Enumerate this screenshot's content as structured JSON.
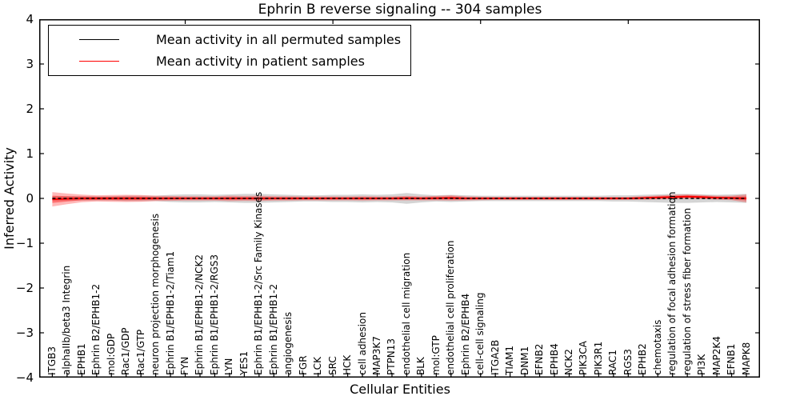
{
  "chart_data": {
    "type": "line",
    "title": "Ephrin B reverse signaling -- 304 samples",
    "xlabel": "Cellular Entities",
    "ylabel": "Inferred Activity",
    "ylim": [
      -4,
      4
    ],
    "yticks": [
      4,
      3,
      2,
      1,
      0,
      -1,
      -2,
      -3,
      -4
    ],
    "grid": false,
    "legend_position": "upper left",
    "xtick_rotation": 90,
    "top_tick_indices": [
      9,
      19,
      29,
      39
    ],
    "categories": [
      "ITGB3",
      "alphaIIb/beta3 Integrin",
      "EPHB1",
      "Ephrin B2/EPHB1-2",
      "mol:GDP",
      "Rac1/GDP",
      "Rac1/GTP",
      "neuron projection morphogenesis",
      "Ephrin B1/EPHB1-2/Tiam1",
      "FYN",
      "Ephrin B1/EPHB1-2/NCK2",
      "Ephrin B1/EPHB1-2/RGS3",
      "LYN",
      "YES1",
      "Ephrin B1/EPHB1-2/Src Family Kinases",
      "Ephrin B1/EPHB1-2",
      "angiogenesis",
      "FGR",
      "LCK",
      "SRC",
      "HCK",
      "cell adhesion",
      "MAP3K7",
      "PTPN13",
      "endothelial cell migration",
      "BLK",
      "mol:GTP",
      "endothelial cell proliferation",
      "Ephrin B2/EPHB4",
      "cell-cell signaling",
      "ITGA2B",
      "TIAM1",
      "DNM1",
      "EFNB2",
      "EPHB4",
      "NCK2",
      "PIK3CA",
      "PIK3R1",
      "RAC1",
      "RGS3",
      "EPHB2",
      "chemotaxis",
      "regulation of focal adhesion formation",
      "regulation of stress fiber formation",
      "PI3K",
      "MAP2K4",
      "EFNB1",
      "MAPK8"
    ],
    "series": [
      {
        "name": "Mean activity in all permuted samples",
        "color": "#000000",
        "band_color": "rgba(120,120,120,0.32)",
        "mean": [
          0,
          0,
          0,
          0,
          0,
          0,
          0,
          0,
          0,
          0,
          0,
          0,
          0,
          0,
          0,
          0,
          0,
          0,
          0,
          0,
          0,
          0,
          0,
          0,
          0,
          0,
          0,
          0,
          0,
          0,
          0,
          0,
          0,
          0,
          0,
          0,
          0,
          0,
          0,
          0,
          0,
          0,
          0,
          0,
          0,
          0,
          0,
          0
        ],
        "std": [
          0.05,
          0.05,
          0.05,
          0.05,
          0.05,
          0.06,
          0.06,
          0.06,
          0.08,
          0.09,
          0.09,
          0.08,
          0.09,
          0.1,
          0.1,
          0.09,
          0.08,
          0.07,
          0.07,
          0.08,
          0.08,
          0.09,
          0.08,
          0.09,
          0.12,
          0.09,
          0.07,
          0.08,
          0.07,
          0.06,
          0.06,
          0.06,
          0.06,
          0.06,
          0.06,
          0.06,
          0.06,
          0.06,
          0.07,
          0.07,
          0.08,
          0.09,
          0.1,
          0.1,
          0.09,
          0.08,
          0.09,
          0.1
        ]
      },
      {
        "name": "Mean activity in patient samples",
        "color": "#ff0000",
        "band_color": "rgba(255,0,0,0.28)",
        "inner_band_color": "rgba(255,0,0,0.38)",
        "mean": [
          -0.02,
          -0.01,
          0,
          0,
          0,
          0,
          0,
          0,
          0,
          0,
          0,
          0,
          0,
          0,
          0,
          0,
          0,
          0,
          0,
          0,
          0,
          0,
          0,
          0,
          0.005,
          0,
          0.005,
          0.01,
          0,
          0,
          0,
          0,
          0,
          0,
          0,
          0,
          0,
          0,
          0,
          0,
          0.01,
          0.02,
          0.03,
          0.04,
          0.03,
          0.015,
          0.01,
          0
        ],
        "std": [
          0.16,
          0.12,
          0.085,
          0.07,
          0.075,
          0.08,
          0.075,
          0.06,
          0.055,
          0.05,
          0.05,
          0.05,
          0.06,
          0.055,
          0.06,
          0.05,
          0.05,
          0.045,
          0.045,
          0.045,
          0.045,
          0.05,
          0.045,
          0.045,
          0.05,
          0.045,
          0.05,
          0.06,
          0.045,
          0.04,
          0.035,
          0.035,
          0.035,
          0.035,
          0.035,
          0.035,
          0.035,
          0.035,
          0.035,
          0.035,
          0.04,
          0.045,
          0.05,
          0.05,
          0.045,
          0.045,
          0.05,
          0.09
        ]
      }
    ],
    "axis_color": "#000000",
    "background_color": "#ffffff"
  }
}
